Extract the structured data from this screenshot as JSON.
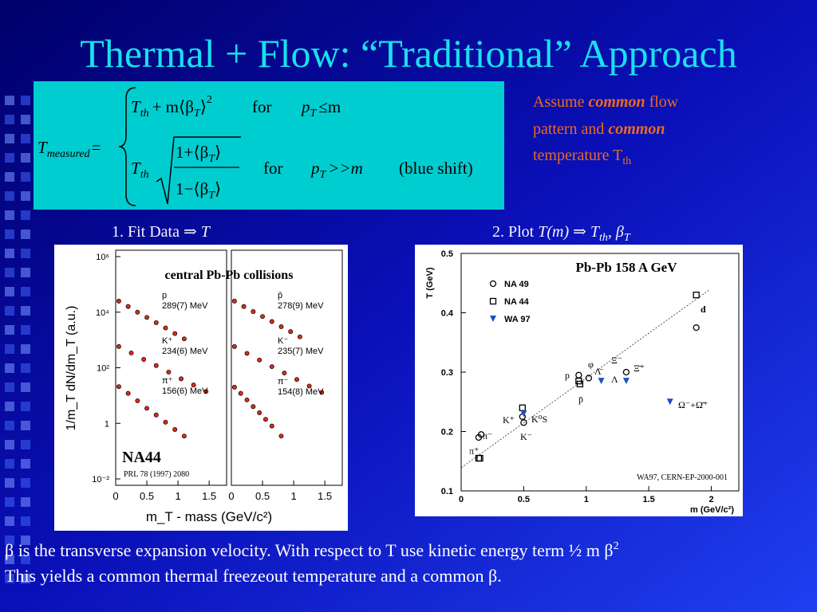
{
  "slide": {
    "title": "Thermal + Flow: “Traditional” Approach",
    "note": [
      "Assume ",
      "common",
      " flow",
      "pattern and ",
      "common",
      "temperature T",
      "th"
    ],
    "caption_left": [
      "1. Fit Data ⇒ ",
      "T"
    ],
    "caption_right": [
      "2. Plot ",
      "T(m)",
      " ⇒ ",
      "T",
      "th",
      ", ",
      "β",
      "T"
    ],
    "footer": [
      "β is the transverse expansion velocity. With respect  to T use kinetic energy term ½ m β",
      "2",
      "This yields a common thermal freezeout temperature and a common β."
    ]
  },
  "equation": {
    "lhs": "T",
    "lhs_sub": "measured",
    "eq": "=",
    "r1_T": "T",
    "r1_th": "th",
    "r1_rest": "+ m⟨β",
    "r1_sub": "T",
    "r1_close": "⟩",
    "r1_sup": "2",
    "for1": "for",
    "p1": "p",
    "p1_sub": "T",
    "cond1": "≤m",
    "r2_T": "T",
    "r2_th": "th",
    "num": "1+⟨β",
    "num_sub": "T",
    "num_close": "⟩",
    "den": "1−⟨β",
    "den_sub": "T",
    "den_close": "⟩",
    "for2": "for",
    "p2": "p",
    "p2_sub": "T",
    "cond2": ">>m",
    "shift": "(blue shift)"
  },
  "chart_data": [
    {
      "type": "spectra",
      "title": "central Pb-Pb collisions",
      "ylabel": "1/m_T dN/dm_T (a.u.)",
      "xlabel": "m_T - mass (GeV/c²)",
      "log_y": true,
      "ylim": [
        0.01,
        1000000
      ],
      "yticks": [
        {
          "value": 0.01,
          "label": "10⁻²"
        },
        1,
        {
          "value": 100,
          "label": "10²"
        },
        {
          "value": 10000,
          "label": "10⁴"
        },
        {
          "value": 1000000,
          "label": "10⁶"
        }
      ],
      "xlim": [
        0,
        1.78
      ],
      "xticks": [
        0,
        0.5,
        1,
        1.5
      ],
      "annotations": [
        "NA44",
        "PRL 78 (1997) 2080"
      ],
      "panels": [
        {
          "series": [
            {
              "name": "p",
              "label": "289(7) MeV",
              "color": "#e02a1a",
              "x": [
                0.05,
                0.2,
                0.35,
                0.5,
                0.65,
                0.8,
                0.95,
                1.1
              ],
              "values": [
                25000,
                16000,
                10000,
                6500,
                4200,
                2700,
                1700,
                1100
              ]
            },
            {
              "name": "K⁺",
              "label": "234(6) MeV",
              "color": "#e02a1a",
              "x": [
                0.05,
                0.25,
                0.45,
                0.65,
                0.85,
                1.05,
                1.25,
                1.45
              ],
              "values": [
                580,
                340,
                200,
                120,
                70,
                40,
                24,
                14
              ]
            },
            {
              "name": "π⁺",
              "label": "156(6) MeV",
              "color": "#e02a1a",
              "x": [
                0.05,
                0.2,
                0.35,
                0.5,
                0.65,
                0.8,
                0.95,
                1.1
              ],
              "values": [
                21,
                12,
                6.5,
                3.5,
                2,
                1.1,
                0.6,
                0.35
              ]
            }
          ]
        },
        {
          "series": [
            {
              "name": "p̄",
              "label": "278(9) MeV",
              "color": "#e02a1a",
              "x": [
                0.05,
                0.2,
                0.35,
                0.5,
                0.65,
                0.8,
                0.95,
                1.1
              ],
              "values": [
                25000,
                16000,
                10500,
                7000,
                4600,
                3000,
                2000,
                1300
              ]
            },
            {
              "name": "K⁻",
              "label": "235(7) MeV",
              "color": "#e02a1a",
              "x": [
                0.05,
                0.25,
                0.45,
                0.65,
                0.85,
                1.05,
                1.25,
                1.45
              ],
              "values": [
                580,
                330,
                190,
                110,
                65,
                38,
                22,
                13
              ]
            },
            {
              "name": "π⁻",
              "label": "154(8) MeV",
              "color": "#e02a1a",
              "x": [
                0.05,
                0.15,
                0.25,
                0.35,
                0.45,
                0.55,
                0.65,
                0.8
              ],
              "values": [
                20,
                12,
                7,
                4,
                2.4,
                1.4,
                0.8,
                0.35
              ]
            }
          ]
        }
      ]
    },
    {
      "type": "scatter",
      "title": "Pb-Pb 158 A GeV",
      "ylabel": "T (GeV)",
      "xlabel": "m (GeV/c²)",
      "xlim": [
        0,
        2.22
      ],
      "ylim": [
        0.1,
        0.5
      ],
      "xticks": [
        0,
        0.5,
        1,
        1.5,
        2
      ],
      "yticks": [
        0.1,
        0.2,
        0.3,
        0.4,
        0.5
      ],
      "legend": "upper left",
      "annotations": [
        "WA97, CERN-EP-2000-001"
      ],
      "particle_labels": [
        "π⁺",
        "π⁻",
        "K⁺",
        "K⁰S",
        "K⁻",
        "p",
        "p̄",
        "φ",
        "Λ",
        "Λ̄",
        "Ξ⁻",
        "Ξ̄⁺",
        "d",
        "Ω⁻+Ω̄⁺"
      ],
      "series": [
        {
          "name": "NA 49",
          "marker": "circle",
          "color": "#000000",
          "x": [
            0.14,
            0.16,
            0.49,
            0.5,
            0.94,
            1.02,
            1.32,
            1.88
          ],
          "values": [
            0.19,
            0.195,
            0.225,
            0.215,
            0.295,
            0.29,
            0.3,
            0.375
          ]
        },
        {
          "name": "NA 44",
          "marker": "square",
          "color": "#000000",
          "x": [
            0.14,
            0.15,
            0.49,
            0.94,
            0.95,
            1.88
          ],
          "values": [
            0.155,
            0.155,
            0.24,
            0.285,
            0.28,
            0.43
          ]
        },
        {
          "name": "WA 97",
          "marker": "triangle",
          "color": "#1f4fc4",
          "x": [
            0.5,
            1.12,
            1.32,
            1.67
          ],
          "values": [
            0.23,
            0.285,
            0.285,
            0.25
          ]
        }
      ]
    }
  ]
}
